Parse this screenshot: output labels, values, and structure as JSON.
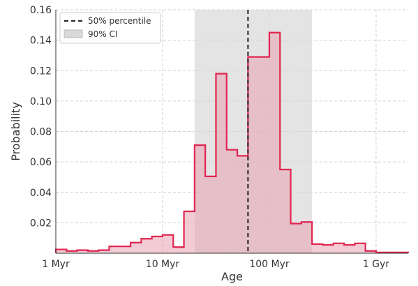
{
  "chart_data": {
    "type": "histogram-step",
    "xscale": "log",
    "x_unit": "Myr",
    "xlabel": "Age",
    "ylabel": "Probability",
    "xlim": [
      1,
      2000
    ],
    "ylim": [
      0,
      0.16
    ],
    "grid": true,
    "x_ticks": [
      {
        "value": 1,
        "label": "1 Myr"
      },
      {
        "value": 10,
        "label": "10 Myr"
      },
      {
        "value": 100,
        "label": "100 Myr"
      },
      {
        "value": 1000,
        "label": "1 Gyr"
      }
    ],
    "y_ticks": [
      {
        "value": 0.02,
        "label": "0.02"
      },
      {
        "value": 0.04,
        "label": "0.04"
      },
      {
        "value": 0.06,
        "label": "0.06"
      },
      {
        "value": 0.08,
        "label": "0.08"
      },
      {
        "value": 0.1,
        "label": "0.10"
      },
      {
        "value": 0.12,
        "label": "0.12"
      },
      {
        "value": 0.14,
        "label": "0.14"
      },
      {
        "value": 0.16,
        "label": "0.16"
      }
    ],
    "bin_edges": [
      1.0,
      1.26,
      1.58,
      2.0,
      2.51,
      3.16,
      3.98,
      5.01,
      6.31,
      7.94,
      10.0,
      12.59,
      15.85,
      19.95,
      25.12,
      31.62,
      39.81,
      50.12,
      63.1,
      79.43,
      100.0,
      125.89,
      158.49,
      199.53,
      251.19,
      316.23,
      398.11,
      501.19,
      630.96,
      794.33,
      1000.0,
      1258.93,
      1584.89,
      1995.26
    ],
    "values": [
      0.0025,
      0.0015,
      0.002,
      0.0015,
      0.002,
      0.0045,
      0.0045,
      0.007,
      0.0095,
      0.011,
      0.012,
      0.004,
      0.0275,
      0.071,
      0.0505,
      0.118,
      0.068,
      0.064,
      0.129,
      0.129,
      0.145,
      0.055,
      0.0195,
      0.0205,
      0.006,
      0.0055,
      0.0065,
      0.0055,
      0.0065,
      0.0015,
      0.0005,
      0.0005,
      0.0005
    ],
    "percentile_50": 63.1,
    "ci_90": [
      19.95,
      251.19
    ],
    "line_color": "#e0254f",
    "fill_color": "#e8a0b0",
    "ci_color": "#d9d9d9",
    "legend": {
      "position": "top-left",
      "entries": [
        {
          "label": "50% percentile",
          "style": "dashed-line"
        },
        {
          "label": "90% CI",
          "style": "shaded-box"
        }
      ]
    }
  }
}
